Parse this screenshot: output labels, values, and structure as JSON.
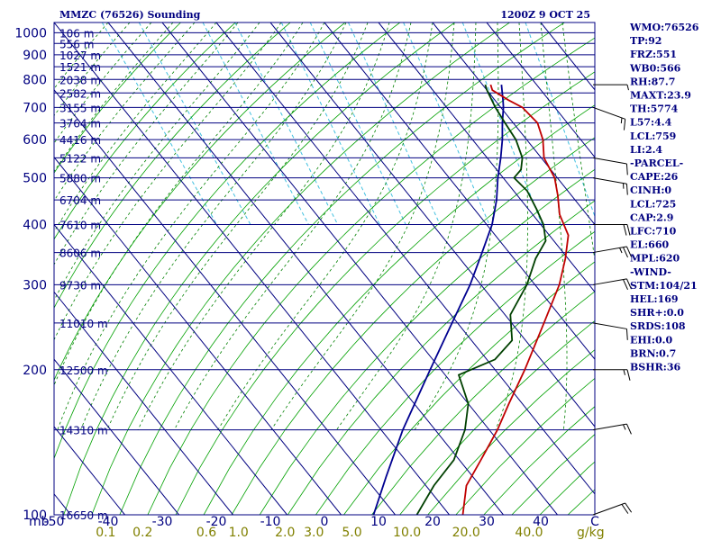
{
  "chart_data": {
    "type": "skew-t",
    "title_left": "MMZC (76526) Sounding",
    "title_right": "1200Z  9 OCT 25",
    "pressure_axis": {
      "label": "mb",
      "ticks": [
        100,
        200,
        300,
        400,
        500,
        600,
        700,
        800,
        900,
        1000
      ]
    },
    "temperature_axis": {
      "unit": "C",
      "ticks": [
        -50,
        -40,
        -30,
        -20,
        -10,
        0,
        10,
        20,
        30,
        40
      ],
      "range": [
        -50,
        50
      ]
    },
    "mixing_ratio_axis": {
      "unit": "g/kg",
      "ticks": [
        "0.1",
        "0.2",
        "0.6",
        "1.0",
        "2.0",
        "3.0",
        "5.0",
        "10.0",
        "20.0",
        "40.0"
      ]
    },
    "height_labels": [
      {
        "p": 100,
        "label": "16650 m"
      },
      {
        "p": 150,
        "label": "14310 m"
      },
      {
        "p": 200,
        "label": "12500 m"
      },
      {
        "p": 250,
        "label": "11010 m"
      },
      {
        "p": 300,
        "label": "9730 m"
      },
      {
        "p": 350,
        "label": "8606 m"
      },
      {
        "p": 400,
        "label": "7610 m"
      },
      {
        "p": 450,
        "label": "6704 m"
      },
      {
        "p": 500,
        "label": "5880 m"
      },
      {
        "p": 550,
        "label": "5122 m"
      },
      {
        "p": 600,
        "label": "4416 m"
      },
      {
        "p": 650,
        "label": "3764 m"
      },
      {
        "p": 700,
        "label": "3155 m"
      },
      {
        "p": 750,
        "label": "2582 m"
      },
      {
        "p": 800,
        "label": "2038 m"
      },
      {
        "p": 850,
        "label": "1521 m"
      },
      {
        "p": 900,
        "label": "1027 m"
      },
      {
        "p": 950,
        "label": "556 m"
      },
      {
        "p": 1000,
        "label": "106 m"
      }
    ],
    "temperature_profile": [
      [
        780,
        21.5
      ],
      [
        760,
        21.0
      ],
      [
        725,
        22.5
      ],
      [
        700,
        24.0
      ],
      [
        650,
        24.5
      ],
      [
        600,
        23.0
      ],
      [
        550,
        20.5
      ],
      [
        500,
        19.5
      ],
      [
        460,
        17.5
      ],
      [
        420,
        15.0
      ],
      [
        380,
        13.5
      ],
      [
        340,
        9.5
      ],
      [
        300,
        4.5
      ],
      [
        250,
        -4.0
      ],
      [
        200,
        -14.5
      ],
      [
        170,
        -22.5
      ],
      [
        150,
        -28.5
      ],
      [
        130,
        -36.0
      ],
      [
        115,
        -42.5
      ],
      [
        100,
        -47.5
      ]
    ],
    "dewpoint_profile": [
      [
        780,
        20.5
      ],
      [
        760,
        20.0
      ],
      [
        700,
        19.0
      ],
      [
        650,
        18.5
      ],
      [
        600,
        18.0
      ],
      [
        550,
        16.5
      ],
      [
        520,
        14.5
      ],
      [
        500,
        12.0
      ],
      [
        470,
        12.5
      ],
      [
        430,
        11.5
      ],
      [
        400,
        10.5
      ],
      [
        370,
        8.5
      ],
      [
        340,
        4.0
      ],
      [
        300,
        -1.5
      ],
      [
        260,
        -9.0
      ],
      [
        230,
        -12.5
      ],
      [
        210,
        -18.5
      ],
      [
        195,
        -27.5
      ],
      [
        170,
        -30.0
      ],
      [
        150,
        -34.5
      ],
      [
        130,
        -41.0
      ],
      [
        115,
        -48.5
      ],
      [
        100,
        -56.0
      ]
    ],
    "parcel_profile": [
      [
        780,
        23.5
      ],
      [
        725,
        21.5
      ],
      [
        700,
        20.5
      ],
      [
        650,
        18.0
      ],
      [
        600,
        15.5
      ],
      [
        550,
        12.5
      ],
      [
        500,
        9.0
      ],
      [
        450,
        5.5
      ],
      [
        400,
        1.0
      ],
      [
        350,
        -5.0
      ],
      [
        300,
        -12.0
      ],
      [
        250,
        -21.0
      ],
      [
        200,
        -32.0
      ],
      [
        150,
        -46.0
      ],
      [
        120,
        -56.0
      ],
      [
        100,
        -64.0
      ]
    ],
    "wind_profile": [
      {
        "p": 100,
        "dir": 70,
        "spd": 20
      },
      {
        "p": 150,
        "dir": 80,
        "spd": 15
      },
      {
        "p": 200,
        "dir": 90,
        "spd": 15
      },
      {
        "p": 250,
        "dir": 100,
        "spd": 10
      },
      {
        "p": 300,
        "dir": 80,
        "spd": 20
      },
      {
        "p": 350,
        "dir": 80,
        "spd": 25
      },
      {
        "p": 400,
        "dir": 90,
        "spd": 20
      },
      {
        "p": 500,
        "dir": 100,
        "spd": 15
      },
      {
        "p": 550,
        "dir": 100,
        "spd": 10
      },
      {
        "p": 700,
        "dir": 110,
        "spd": 15
      },
      {
        "p": 780,
        "dir": 90,
        "spd": 5
      }
    ],
    "indices": [
      "WMO:76526",
      "TP:92",
      "FRZ:551",
      "WB0:566",
      "RH:87.7",
      "MAXT:23.9",
      "TH:5774",
      "L57:4.4",
      "LCL:759",
      "LI:2.4",
      "-PARCEL-",
      "CAPE:26",
      "CINH:0",
      "LCL:725",
      "CAP:2.9",
      "LFC:710",
      "EL:660",
      "MPL:620",
      "-WIND-",
      "STM:104/21",
      "HEL:169",
      "SHR+:0.0",
      "SRDS:108",
      "EHI:0.0",
      "BRN:0.7",
      "BSHR:36"
    ],
    "colors": {
      "isobar": "#000080",
      "isotherm": "#000080",
      "dry_adiabat": "#00a000",
      "moist_adiabat": "#008000",
      "mixing_ratio": "#40c0e0",
      "temperature": "#c00000",
      "dewpoint": "#004000",
      "parcel": "#000090",
      "axis_text": "#000080",
      "mixing_text": "#808000",
      "barb": "#000000"
    }
  }
}
